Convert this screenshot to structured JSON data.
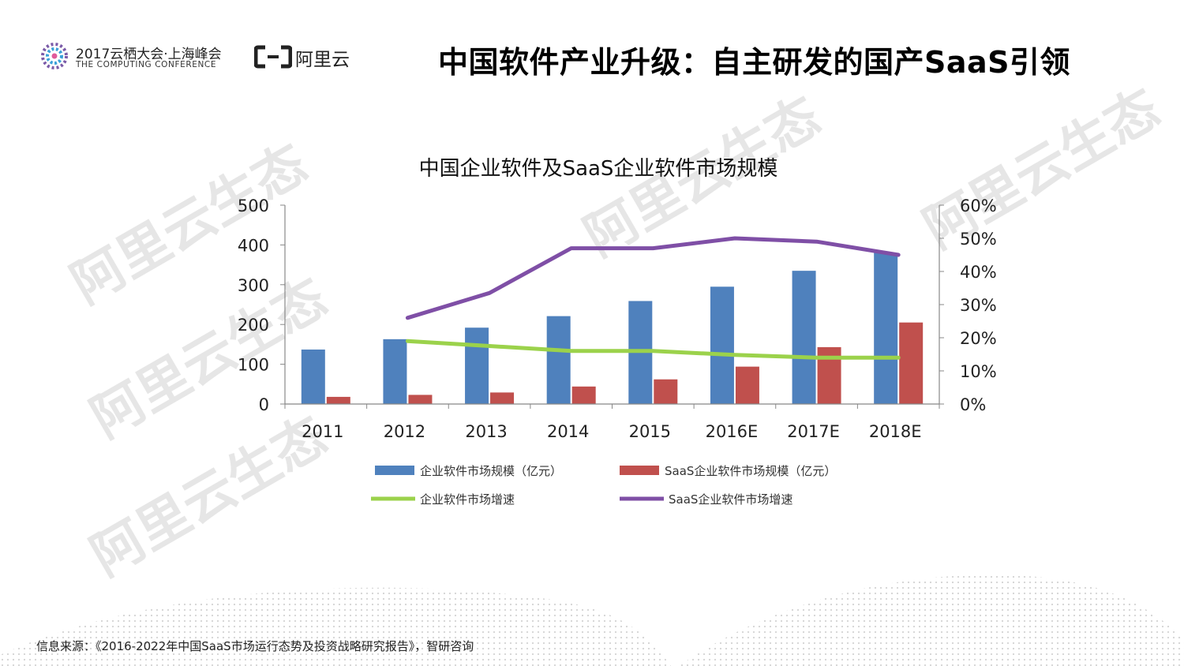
{
  "header": {
    "conference_title": "2017云栖大会·上海峰会",
    "conference_subtitle": "THE COMPUTING CONFERENCE",
    "brand_name": "阿里云",
    "page_title": "中国软件产业升级：自主研发的国产SaaS引领"
  },
  "watermark_text": "阿里云生态",
  "footer": {
    "source": "信息来源：《2016-2022年中国SaaS市场运行态势及投资战略研究报告》，智研咨询"
  },
  "colors": {
    "enterprise_bar": "#4f81bd",
    "saas_bar": "#c0504d",
    "enterprise_growth": "#9bd24b",
    "saas_growth": "#7f4fa6"
  },
  "chart_data": {
    "type": "bar",
    "title": "中国企业软件及SaaS企业软件市场规模",
    "categories": [
      "2011",
      "2012",
      "2013",
      "2014",
      "2015",
      "2016E",
      "2017E",
      "2018E"
    ],
    "y_left": {
      "ylim": [
        0,
        500
      ],
      "ticks": [
        "0",
        "100",
        "200",
        "300",
        "400",
        "500"
      ]
    },
    "y_right": {
      "ylim": [
        0,
        60
      ],
      "ticks": [
        "0%",
        "10%",
        "20%",
        "30%",
        "40%",
        "50%",
        "60%"
      ]
    },
    "series": [
      {
        "name": "企业软件市场规模（亿元）",
        "type": "bar",
        "axis": "left",
        "values": [
          137,
          163,
          192,
          221,
          259,
          295,
          335,
          380
        ]
      },
      {
        "name": "SaaS企业软件市场规模（亿元）",
        "type": "bar",
        "axis": "left",
        "values": [
          18,
          23,
          29,
          44,
          62,
          94,
          143,
          205
        ]
      },
      {
        "name": "企业软件市场增速",
        "type": "line",
        "axis": "right",
        "values": [
          null,
          19,
          17.5,
          16,
          16,
          14.8,
          14,
          14
        ]
      },
      {
        "name": "SaaS企业软件市场增速",
        "type": "line",
        "axis": "right",
        "values": [
          null,
          26,
          33.5,
          47,
          47,
          50,
          49,
          45
        ]
      }
    ],
    "legend": "bottom"
  }
}
